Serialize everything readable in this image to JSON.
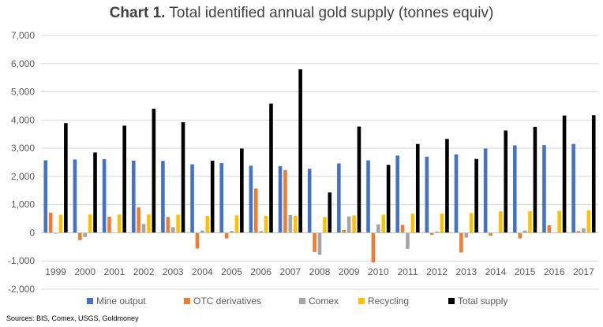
{
  "title": {
    "bold_part": "Chart 1.",
    "rest": "Total identified annual gold supply (tonnes equiv)"
  },
  "source": "Sources: BIS, Comex, USGS, Goldmoney",
  "colors": {
    "mine_output": "#4472C4",
    "otc_derivatives": "#ED7D31",
    "comex": "#A5A5A5",
    "recycling": "#FFC000",
    "total_supply": "#000000",
    "grid": "#D9D9D9",
    "text": "#595959"
  },
  "chart_data": {
    "type": "bar",
    "title": "Total identified annual gold supply (tonnes equiv)",
    "xlabel": "",
    "ylabel": "",
    "ylim": [
      -2000,
      7000
    ],
    "yticks": [
      -2000,
      -1000,
      0,
      1000,
      2000,
      3000,
      4000,
      5000,
      6000,
      7000
    ],
    "ytick_labels": [
      "-2,000",
      "-1,000",
      "0",
      "1,000",
      "2,000",
      "3,000",
      "4,000",
      "5,000",
      "6,000",
      "7,000"
    ],
    "grid": true,
    "legend_position": "bottom",
    "categories": [
      "1999",
      "2000",
      "2001",
      "2002",
      "2003",
      "2004",
      "2005",
      "2006",
      "2007",
      "2008",
      "2009",
      "2010",
      "2011",
      "2012",
      "2013",
      "2014",
      "2015",
      "2016",
      "2017"
    ],
    "series": [
      {
        "name": "Mine output",
        "key": "mine_output",
        "values": [
          2570,
          2600,
          2610,
          2560,
          2550,
          2430,
          2470,
          2380,
          2360,
          2270,
          2460,
          2570,
          2740,
          2700,
          2780,
          2990,
          3100,
          3110,
          3150
        ]
      },
      {
        "name": "OTC derivatives",
        "key": "otc_derivatives",
        "values": [
          710,
          -260,
          570,
          900,
          560,
          -560,
          -200,
          1570,
          2230,
          -680,
          100,
          -1050,
          280,
          -70,
          -700,
          -100,
          -200,
          270,
          60
        ]
      },
      {
        "name": "Comex",
        "key": "comex",
        "values": [
          -30,
          -150,
          10,
          310,
          200,
          80,
          60,
          60,
          630,
          -780,
          580,
          300,
          -570,
          40,
          -170,
          0,
          80,
          -10,
          160
        ]
      },
      {
        "name": "Recycling",
        "key": "recycling",
        "values": [
          640,
          650,
          650,
          650,
          640,
          600,
          620,
          600,
          600,
          560,
          610,
          640,
          680,
          680,
          700,
          760,
          770,
          780,
          800
        ]
      },
      {
        "name": "Total supply",
        "key": "total_supply",
        "values": [
          3890,
          2850,
          3800,
          4400,
          3920,
          2560,
          2990,
          4580,
          5800,
          1430,
          3770,
          2410,
          3150,
          3330,
          2620,
          3630,
          3760,
          4160,
          4170
        ]
      }
    ]
  }
}
